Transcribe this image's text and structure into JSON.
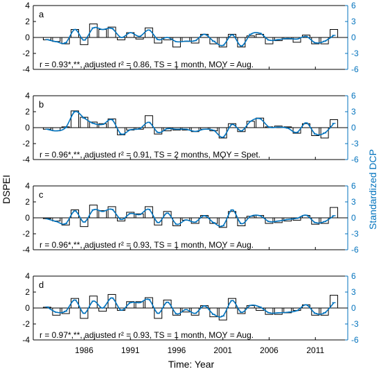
{
  "figure": {
    "ylabel_left": "DSPEI",
    "ylabel_right": "Standardized DCP",
    "xlabel": "Time: Year",
    "colors": {
      "axis": "#000000",
      "right_axis": "#0072BD",
      "bar": "#000000",
      "line": "#0072BD"
    }
  },
  "chart_data": [
    {
      "type": "bar",
      "panel_label": "a",
      "annotation": "r = 0.93*,**, adjusted r² = 0.86, TS = 1 month, MOY = Aug.",
      "x": [
        1982,
        1983,
        1984,
        1985,
        1986,
        1987,
        1988,
        1989,
        1990,
        1991,
        1992,
        1993,
        1994,
        1995,
        1996,
        1997,
        1998,
        1999,
        2000,
        2001,
        2002,
        2003,
        2004,
        2005,
        2006,
        2007,
        2008,
        2009,
        2010,
        2011,
        2012,
        2013
      ],
      "series": [
        {
          "name": "",
          "axis": "left",
          "style": "bar",
          "values": [
            -0.3,
            -0.5,
            -0.8,
            1.0,
            -0.9,
            1.7,
            1.0,
            1.3,
            -0.3,
            0.6,
            -0.2,
            1.2,
            -0.7,
            -0.3,
            -1.2,
            -0.5,
            -0.7,
            0.4,
            -0.8,
            -1.2,
            0.4,
            -1.2,
            0.2,
            0.4,
            -0.8,
            -0.4,
            -0.2,
            -0.6,
            0.3,
            -0.8,
            -0.8,
            1.0
          ]
        },
        {
          "name": "",
          "axis": "right",
          "style": "line",
          "values": [
            -0.4,
            -0.8,
            -1.0,
            1.5,
            -0.5,
            1.8,
            1.5,
            1.7,
            0.0,
            0.9,
            0.2,
            1.4,
            -0.4,
            0.0,
            -0.8,
            -0.7,
            -0.6,
            0.6,
            -0.7,
            -1.5,
            0.5,
            -1.6,
            0.6,
            0.8,
            -0.5,
            -0.4,
            -0.2,
            -0.3,
            0.2,
            -1.0,
            -0.7,
            0.4
          ]
        }
      ],
      "ylim_left": [
        -4,
        4
      ],
      "yticks_left": [
        -4,
        -2,
        0,
        2,
        4
      ],
      "ylim_right": [
        -6,
        6
      ],
      "yticks_right": [
        -6,
        -3,
        0,
        3,
        6
      ],
      "xlim": [
        1980.5,
        2014.5
      ]
    },
    {
      "type": "bar",
      "panel_label": "b",
      "annotation": "r = 0.96*,**, adjusted r² = 0.91, TS = 2 months, MOY = Spet.",
      "x": [
        1982,
        1983,
        1984,
        1985,
        1986,
        1987,
        1988,
        1989,
        1990,
        1991,
        1992,
        1993,
        1994,
        1995,
        1996,
        1997,
        1998,
        1999,
        2000,
        2001,
        2002,
        2003,
        2004,
        2005,
        2006,
        2007,
        2008,
        2009,
        2010,
        2011,
        2012,
        2013
      ],
      "series": [
        {
          "name": "",
          "axis": "left",
          "style": "bar",
          "values": [
            -0.2,
            -0.4,
            0.1,
            2.1,
            1.3,
            0.7,
            0.5,
            1.1,
            -0.9,
            -0.3,
            -0.2,
            1.5,
            -0.8,
            -0.4,
            -0.3,
            -0.3,
            -0.5,
            -0.2,
            -0.4,
            -1.3,
            0.5,
            -0.5,
            0.8,
            1.2,
            0.1,
            0.2,
            0.1,
            -0.7,
            0.5,
            -1.0,
            -1.3,
            1.0
          ]
        },
        {
          "name": "",
          "axis": "right",
          "style": "line",
          "values": [
            -0.3,
            -0.6,
            0.0,
            3.0,
            1.8,
            0.8,
            0.6,
            1.5,
            -1.2,
            -0.4,
            -0.2,
            1.0,
            -0.9,
            -0.2,
            -0.3,
            -0.3,
            -0.7,
            -0.3,
            -0.5,
            -1.8,
            0.6,
            -0.6,
            1.2,
            1.7,
            0.1,
            0.1,
            -0.1,
            -0.9,
            0.9,
            -1.2,
            -1.0,
            0.8
          ]
        }
      ],
      "ylim_left": [
        -4,
        4
      ],
      "yticks_left": [
        -4,
        -2,
        0,
        2,
        4
      ],
      "ylim_right": [
        -6,
        6
      ],
      "yticks_right": [
        -6,
        -3,
        0,
        3,
        6
      ],
      "xlim": [
        1980.5,
        2014.5
      ]
    },
    {
      "type": "bar",
      "panel_label": "c",
      "annotation": "r = 0.96*,**, adjusted r² = 0.93, TS = 1 month, MOY = Aug.",
      "x": [
        1982,
        1983,
        1984,
        1985,
        1986,
        1987,
        1988,
        1989,
        1990,
        1991,
        1992,
        1993,
        1994,
        1995,
        1996,
        1997,
        1998,
        1999,
        2000,
        2001,
        2002,
        2003,
        2004,
        2005,
        2006,
        2007,
        2008,
        2009,
        2010,
        2011,
        2012,
        2013
      ],
      "series": [
        {
          "name": "",
          "axis": "left",
          "style": "bar",
          "values": [
            -0.1,
            -0.4,
            -0.9,
            1.0,
            -1.1,
            1.6,
            0.9,
            1.4,
            -0.4,
            0.7,
            0.5,
            1.4,
            -0.9,
            0.8,
            -1.0,
            -0.3,
            -0.7,
            0.3,
            -0.7,
            -1.2,
            0.8,
            -1.0,
            0.2,
            0.3,
            -0.7,
            -0.6,
            -0.4,
            -0.3,
            0.3,
            -0.8,
            -0.7,
            1.3
          ]
        },
        {
          "name": "",
          "axis": "right",
          "style": "line",
          "values": [
            -0.2,
            -0.7,
            -1.1,
            1.3,
            -0.8,
            1.5,
            1.2,
            1.6,
            -0.3,
            0.8,
            0.6,
            1.6,
            -0.9,
            0.9,
            -1.2,
            -0.4,
            -0.8,
            0.4,
            -0.9,
            -1.5,
            1.5,
            -1.1,
            0.3,
            0.4,
            -0.7,
            -0.6,
            -0.3,
            -0.1,
            0.5,
            -0.9,
            -0.7,
            0.4
          ]
        }
      ],
      "ylim_left": [
        -4,
        4
      ],
      "yticks_left": [
        -4,
        -2,
        0,
        2,
        4
      ],
      "ylim_right": [
        -6,
        6
      ],
      "yticks_right": [
        -6,
        -3,
        0,
        3,
        6
      ],
      "xlim": [
        1980.5,
        2014.5
      ]
    },
    {
      "type": "bar",
      "panel_label": "d",
      "annotation": "r = 0.97*,**, adjusted r² = 0.93, TS = 1 month, MOY = Aug.",
      "x": [
        1982,
        1983,
        1984,
        1985,
        1986,
        1987,
        1988,
        1989,
        1990,
        1991,
        1992,
        1993,
        1994,
        1995,
        1996,
        1997,
        1998,
        1999,
        2000,
        2001,
        2002,
        2003,
        2004,
        2005,
        2006,
        2007,
        2008,
        2009,
        2010,
        2011,
        2012,
        2013
      ],
      "series": [
        {
          "name": "",
          "axis": "left",
          "style": "bar",
          "values": [
            0.1,
            -0.9,
            -0.7,
            1.2,
            -1.3,
            1.5,
            -0.4,
            1.7,
            -0.3,
            0.8,
            0.8,
            1.3,
            -1.3,
            1.0,
            -0.9,
            -0.5,
            -0.9,
            0.3,
            -1.1,
            -1.5,
            1.2,
            -0.7,
            0.3,
            -0.3,
            -0.8,
            -0.8,
            -0.6,
            -0.3,
            0.4,
            -0.9,
            -0.9,
            1.6
          ]
        },
        {
          "name": "",
          "axis": "right",
          "style": "line",
          "values": [
            0.2,
            -0.8,
            -0.6,
            1.5,
            -1.0,
            1.3,
            0.0,
            1.9,
            -0.4,
            1.0,
            1.0,
            1.6,
            -1.0,
            1.1,
            -1.1,
            -0.3,
            -1.0,
            0.4,
            -1.2,
            -1.5,
            1.4,
            -0.8,
            0.5,
            0.2,
            -0.9,
            -0.9,
            -0.8,
            -0.5,
            0.6,
            -1.0,
            -0.9,
            1.0
          ]
        }
      ],
      "ylim_left": [
        -4,
        4
      ],
      "yticks_left": [
        -4,
        -2,
        0,
        2,
        4
      ],
      "ylim_right": [
        -6,
        6
      ],
      "yticks_right": [
        -6,
        -3,
        0,
        3,
        6
      ],
      "xlim": [
        1980.5,
        2014.5
      ],
      "xticks": [
        1986,
        1991,
        1996,
        2001,
        2006,
        2011
      ]
    }
  ]
}
